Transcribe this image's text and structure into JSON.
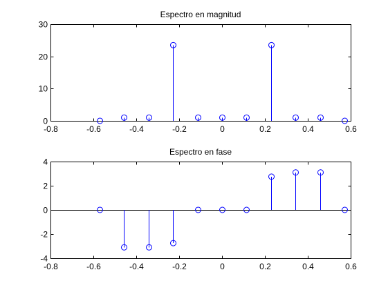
{
  "colors": {
    "series": "#0000ff",
    "axes": "#000000",
    "background": "#ffffff"
  },
  "chart_data": [
    {
      "type": "stem",
      "title": "Espectro en magnitud",
      "xlabel": "",
      "ylabel": "",
      "xlim": [
        -0.8,
        0.6
      ],
      "ylim": [
        0,
        30
      ],
      "xticks": [
        -0.8,
        -0.6,
        -0.4,
        -0.2,
        0,
        0.2,
        0.4,
        0.6
      ],
      "xtick_labels": [
        "-0.8",
        "-0.6",
        "-0.4",
        "-0.2",
        "0",
        "0.2",
        "0.4",
        "0.6"
      ],
      "yticks": [
        0,
        10,
        20,
        30
      ],
      "ytick_labels": [
        "0",
        "10",
        "20",
        "30"
      ],
      "grid": false,
      "legend": "none",
      "x": [
        -0.5712,
        -0.457,
        -0.3427,
        -0.2285,
        -0.1142,
        0,
        0.1142,
        0.2285,
        0.3427,
        0.457,
        0.5712
      ],
      "y": [
        0,
        1,
        1,
        23.5,
        1,
        1,
        1,
        23.5,
        1,
        1,
        0
      ]
    },
    {
      "type": "stem",
      "title": "Espectro en fase",
      "xlabel": "",
      "ylabel": "",
      "xlim": [
        -0.8,
        0.6
      ],
      "ylim": [
        -4,
        4
      ],
      "xticks": [
        -0.8,
        -0.6,
        -0.4,
        -0.2,
        0,
        0.2,
        0.4,
        0.6
      ],
      "xtick_labels": [
        "-0.8",
        "-0.6",
        "-0.4",
        "-0.2",
        "0",
        "0.2",
        "0.4",
        "0.6"
      ],
      "yticks": [
        -4,
        -2,
        0,
        2,
        4
      ],
      "ytick_labels": [
        "-4",
        "-2",
        "0",
        "2",
        "4"
      ],
      "grid": false,
      "legend": "none",
      "x": [
        -0.5712,
        -0.457,
        -0.3427,
        -0.2285,
        -0.1142,
        0,
        0.1142,
        0.2285,
        0.3427,
        0.457,
        0.5712
      ],
      "y": [
        0,
        -3.1,
        -3.1,
        -2.75,
        0,
        0,
        0,
        2.75,
        3.1,
        3.1,
        0
      ]
    }
  ]
}
